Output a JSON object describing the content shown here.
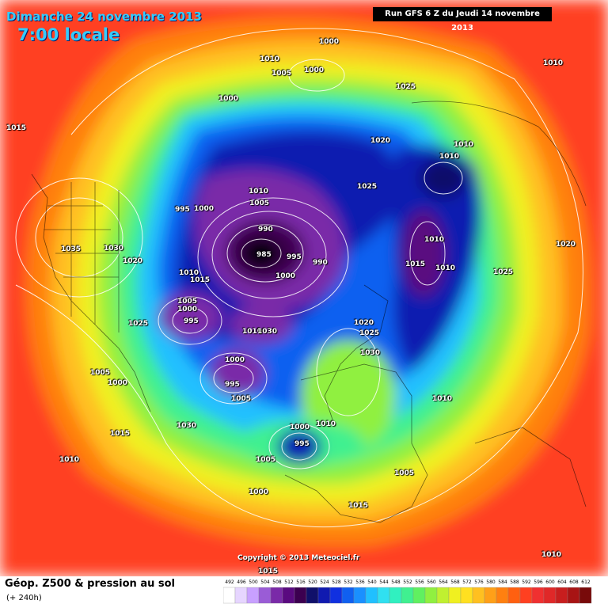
{
  "header": {
    "date": "Dimanche 24 novembre 2013",
    "time": "7:00 locale",
    "run": "Run GFS 6 Z du Jeudi 14 novembre 2013"
  },
  "footer": {
    "parameter": "Géop. Z500 & pression au sol",
    "lead": "(+ 240h)",
    "copyright": "Copyright © 2013 Meteociel.fr"
  },
  "isobar_labels": [
    "1000",
    "1010",
    "1005",
    "1000",
    "1000",
    "1010",
    "1025",
    "1015",
    "1020",
    "1010",
    "1010",
    "1010",
    "1005",
    "1025",
    "995",
    "1000",
    "1010",
    "1020",
    "990",
    "1015",
    "985",
    "995",
    "990",
    "1000",
    "1035",
    "1030",
    "1020",
    "1010",
    "1015",
    "1025",
    "1010",
    "1005",
    "1000",
    "995",
    "1025",
    "1010",
    "1030",
    "1020",
    "1025",
    "1000",
    "1030",
    "995",
    "1005",
    "1005",
    "1000",
    "1010",
    "1015",
    "1030",
    "1000",
    "1010",
    "995",
    "1005",
    "1010",
    "1005",
    "1000",
    "1015",
    "1010",
    "1015"
  ],
  "legend": {
    "values": [
      "492",
      "496",
      "500",
      "504",
      "508",
      "512",
      "516",
      "520",
      "524",
      "528",
      "532",
      "536",
      "540",
      "544",
      "548",
      "552",
      "556",
      "560",
      "564",
      "568",
      "572",
      "576",
      "580",
      "584",
      "588",
      "592",
      "596",
      "600",
      "604",
      "608",
      "612"
    ],
    "colors": [
      "#ffffff",
      "#e6d5ff",
      "#c8a0ff",
      "#9a5cd6",
      "#7a2aa8",
      "#5a0a80",
      "#3c0050",
      "#10106a",
      "#101ab0",
      "#1030e0",
      "#1060f0",
      "#1a90ff",
      "#20c0ff",
      "#30e0f0",
      "#30f0c0",
      "#40f090",
      "#60f060",
      "#90f040",
      "#c0f030",
      "#f0f020",
      "#ffe020",
      "#ffc020",
      "#ffa018",
      "#ff8010",
      "#ff6010",
      "#ff4020",
      "#f03030",
      "#e02828",
      "#c81e1e",
      "#a81414",
      "#780a0a"
    ]
  }
}
